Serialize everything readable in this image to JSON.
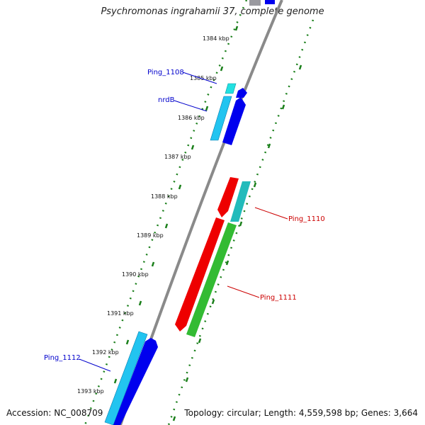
{
  "title": "Psychromonas ingrahamii 37, complete genome",
  "footer": {
    "accession": "Accession: NC_008709",
    "summary": "Topology: circular; Length: 4,559,598 bp; Genes: 3,664"
  },
  "ticks": [
    "1384 kbp",
    "1385 kbp",
    "1386 kbp",
    "1387 kbp",
    "1388 kbp",
    "1389 kbp",
    "1390 kbp",
    "1391 kbp",
    "1392 kbp",
    "1393 kbp"
  ],
  "genes": {
    "ping_1108": "Ping_1108",
    "nrdb": "nrdB",
    "ping_1110": "Ping_1110",
    "ping_1111": "Ping_1111",
    "ping_1112": "Ping_1112"
  },
  "colors": {
    "backbone": "#8a8a8a",
    "tick_dots": "#1a7f1a",
    "blue_label": "#0000cc",
    "red_label": "#cc0000",
    "cds_blue": "#0000ee",
    "cds_cyan": "#22c4f0",
    "cds_red": "#ee0000",
    "cds_teal": "#22bbbb",
    "cds_green": "#33bb33"
  }
}
